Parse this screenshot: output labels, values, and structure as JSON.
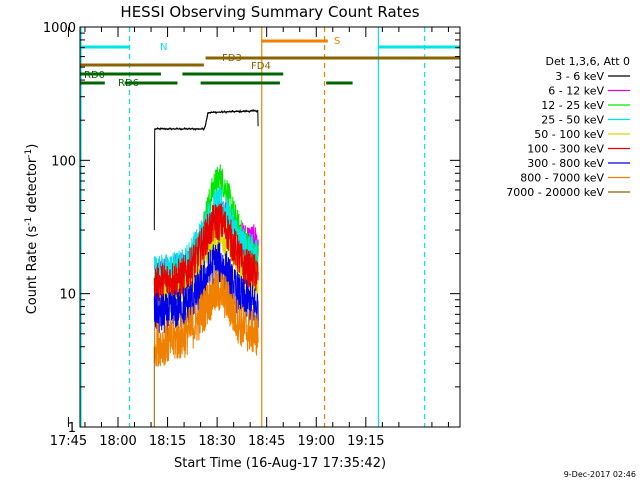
{
  "chart_data": {
    "type": "line",
    "title": "HESSI Observing Summary Count Rates",
    "xlabel": "Start Time (16-Aug-17 17:35:42)",
    "ylabel_parts": [
      "Count Rate (s",
      "-1",
      " detector",
      "-1",
      ")"
    ],
    "yscale": "log",
    "ylim": [
      1,
      1000
    ],
    "xlim_minutes": [
      -11.5,
      103.5
    ],
    "xticks": [
      {
        "min": -15,
        "label": "17:45"
      },
      {
        "min": 0,
        "label": "18:00"
      },
      {
        "min": 15,
        "label": "18:15"
      },
      {
        "min": 30,
        "label": "18:30"
      },
      {
        "min": 45,
        "label": "18:45"
      },
      {
        "min": 60,
        "label": "19:00"
      },
      {
        "min": 75,
        "label": "19:15"
      }
    ],
    "yticks": [
      {
        "value": 1,
        "label": "1"
      },
      {
        "value": 10,
        "label": "10"
      },
      {
        "value": 100,
        "label": "100"
      },
      {
        "value": 1000,
        "label": "1000"
      }
    ],
    "legend": {
      "placement": "right",
      "header": "Det 1,3,6, Att 0",
      "entries": [
        {
          "label": "3 - 6 keV",
          "color": "#000000"
        },
        {
          "label": "6 - 12 keV",
          "color": "#e600e6"
        },
        {
          "label": "12 - 25 keV",
          "color": "#00e600"
        },
        {
          "label": "25 - 50 keV",
          "color": "#00e6e6"
        },
        {
          "label": "50 - 100 keV",
          "color": "#dcdc00"
        },
        {
          "label": "100 - 300 keV",
          "color": "#e60000"
        },
        {
          "label": "300 - 800 keV",
          "color": "#0000e6"
        },
        {
          "label": "800 - 7000 keV",
          "color": "#f08000"
        },
        {
          "label": "7000 - 20000 keV",
          "color": "#8a6400"
        }
      ]
    },
    "data_start_min": 11.0,
    "data_end_min": 42.5,
    "series": [
      {
        "name": "3 - 6 keV",
        "color": "#000000",
        "points": [
          [
            11.0,
            30
          ],
          [
            11.1,
            172
          ],
          [
            17.5,
            172
          ],
          [
            26.0,
            172
          ],
          [
            26.5,
            185
          ],
          [
            27.2,
            228
          ],
          [
            31.0,
            230
          ],
          [
            35.0,
            232
          ],
          [
            42.0,
            235
          ],
          [
            42.3,
            236
          ],
          [
            42.4,
            180
          ]
        ]
      },
      {
        "name": "6 - 12 keV",
        "color": "#e600e6",
        "points": [
          [
            11.0,
            15
          ],
          [
            15,
            15
          ],
          [
            20,
            16.5
          ],
          [
            24,
            19
          ],
          [
            27,
            26
          ],
          [
            29,
            35
          ],
          [
            31,
            42
          ],
          [
            33,
            38
          ],
          [
            35,
            31
          ],
          [
            38,
            27
          ],
          [
            42,
            26
          ],
          [
            42.5,
            20
          ]
        ]
      },
      {
        "name": "12 - 25 keV",
        "color": "#00e600",
        "points": [
          [
            11.0,
            12
          ],
          [
            15,
            13
          ],
          [
            20,
            15
          ],
          [
            24,
            22
          ],
          [
            27,
            42
          ],
          [
            29,
            65
          ],
          [
            31,
            75
          ],
          [
            33,
            58
          ],
          [
            35,
            40
          ],
          [
            38,
            25
          ],
          [
            42,
            19
          ]
        ]
      },
      {
        "name": "25 - 50 keV",
        "color": "#00e6e6",
        "points": [
          [
            11.0,
            15
          ],
          [
            15,
            15
          ],
          [
            20,
            16.5
          ],
          [
            24,
            24
          ],
          [
            27,
            35
          ],
          [
            29,
            45
          ],
          [
            31,
            48
          ],
          [
            33,
            40
          ],
          [
            35,
            31
          ],
          [
            38,
            23
          ],
          [
            42,
            20
          ]
        ]
      },
      {
        "name": "50 - 100 keV",
        "color": "#dcdc00",
        "points": [
          [
            11.0,
            10.5
          ],
          [
            15,
            10.5
          ],
          [
            20,
            11.5
          ],
          [
            24,
            15
          ],
          [
            27,
            22
          ],
          [
            29,
            27
          ],
          [
            31,
            28
          ],
          [
            33,
            25
          ],
          [
            35,
            19
          ],
          [
            38,
            14
          ],
          [
            42,
            12
          ]
        ]
      },
      {
        "name": "100 - 300 keV",
        "color": "#e60000",
        "points": [
          [
            11.0,
            12
          ],
          [
            15,
            12.5
          ],
          [
            20,
            13.5
          ],
          [
            24,
            19
          ],
          [
            27,
            28
          ],
          [
            29,
            34
          ],
          [
            31,
            35
          ],
          [
            33,
            30
          ],
          [
            35,
            23
          ],
          [
            38,
            16
          ],
          [
            42,
            14
          ]
        ]
      },
      {
        "name": "300 - 800 keV",
        "color": "#0000e6",
        "points": [
          [
            11.0,
            7
          ],
          [
            15,
            7
          ],
          [
            20,
            8
          ],
          [
            24,
            10
          ],
          [
            27,
            14
          ],
          [
            29,
            17
          ],
          [
            31,
            17
          ],
          [
            33,
            14.5
          ],
          [
            35,
            11
          ],
          [
            38,
            9
          ],
          [
            42,
            8
          ]
        ]
      },
      {
        "name": "800 - 7000 keV",
        "color": "#f08000",
        "points": [
          [
            11.0,
            4.2
          ],
          [
            15,
            4.3
          ],
          [
            20,
            4.8
          ],
          [
            24,
            6.2
          ],
          [
            27,
            8.5
          ],
          [
            29,
            10
          ],
          [
            31,
            10.5
          ],
          [
            33,
            9
          ],
          [
            35,
            7
          ],
          [
            38,
            5.5
          ],
          [
            42,
            5
          ]
        ]
      },
      {
        "name": "7000 - 20000 keV",
        "color": "#8a6400",
        "points": [
          [
            11.0,
            1
          ],
          [
            11.3,
            1
          ]
        ]
      }
    ],
    "flag_bars": [
      {
        "label": "N",
        "color": "#00e6e6",
        "y": 47,
        "segments": [
          [
            -11.5,
            3.5
          ],
          [
            79,
            103.5
          ]
        ]
      },
      {
        "label": "S",
        "color": "#f08000",
        "y": 41,
        "segments": [
          [
            43.5,
            63.5
          ]
        ]
      },
      {
        "label": "FD3",
        "color": "#8a6400",
        "y": 58,
        "segments": [
          [
            26.5,
            103.5
          ]
        ]
      },
      {
        "label": "FD4",
        "color": "#8a6400",
        "y": 65,
        "segments": [
          [
            -11.5,
            26
          ]
        ]
      },
      {
        "label": "RD0",
        "color": "#006400",
        "y": 74,
        "segments": [
          [
            -11.5,
            13
          ],
          [
            19.5,
            50
          ]
        ]
      },
      {
        "label": "RD6",
        "color": "#006400",
        "y": 83,
        "segments": [
          [
            -11.5,
            -4
          ],
          [
            2,
            18
          ],
          [
            25,
            49
          ],
          [
            63,
            71
          ]
        ]
      }
    ],
    "vlines": [
      {
        "min": -11.2,
        "color": "#00e6e6",
        "style": "solid"
      },
      {
        "min": 3.5,
        "color": "#00e6e6",
        "style": "dashed"
      },
      {
        "min": 43.5,
        "color": "#f08000",
        "style": "solid"
      },
      {
        "min": 62.5,
        "color": "#f08000",
        "style": "dashed"
      },
      {
        "min": 78.8,
        "color": "#00e6e6",
        "style": "solid"
      },
      {
        "min": 92.8,
        "color": "#00e6e6",
        "style": "dashed"
      }
    ],
    "footer_date": "9-Dec-2017 02:46"
  }
}
